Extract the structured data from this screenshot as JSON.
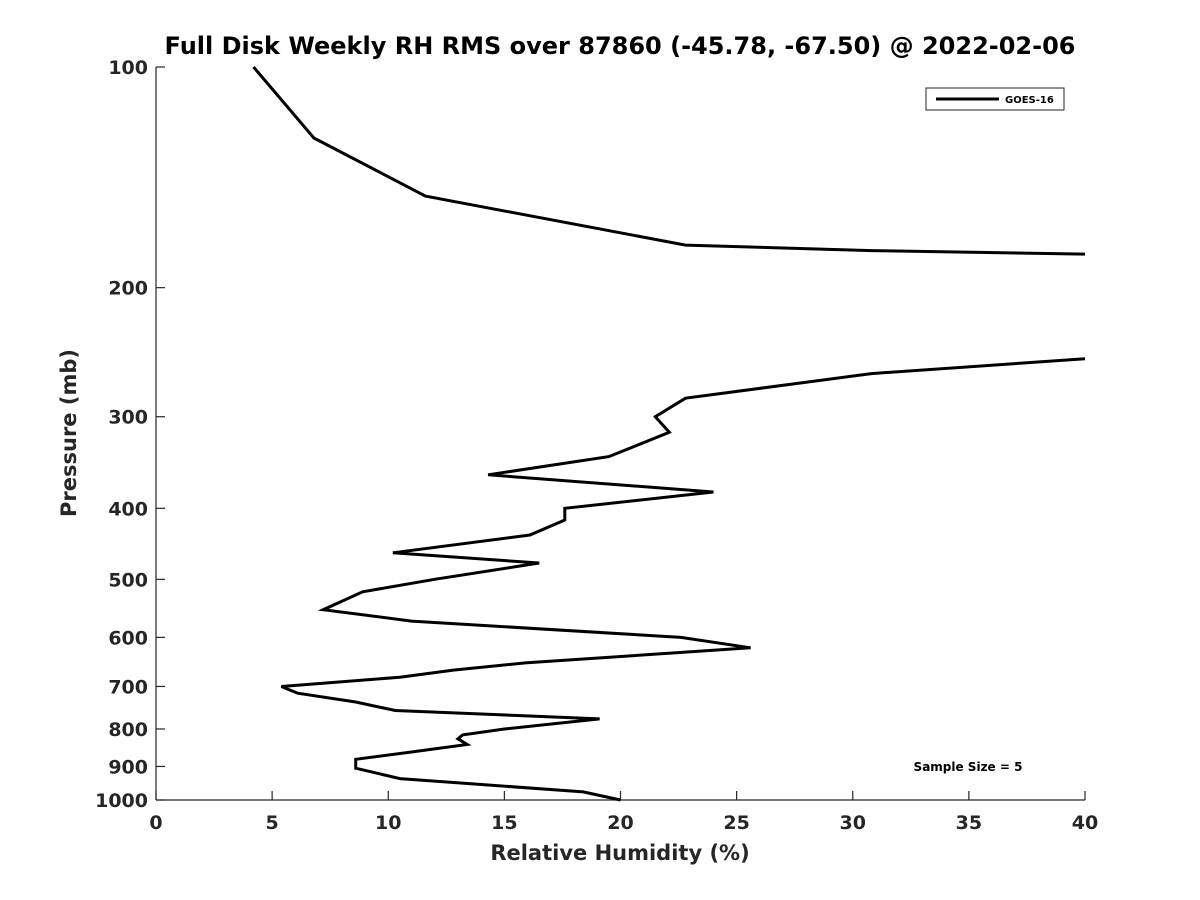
{
  "chart_data": {
    "type": "line",
    "title": "Full Disk Weekly RH RMS over 87860 (-45.78, -67.50) @ 2022-02-06",
    "xlabel": "Relative Humidity (%)",
    "ylabel": "Pressure (mb)",
    "xlim": [
      0,
      40
    ],
    "ylim": [
      100,
      1000
    ],
    "y_scale": "log",
    "y_reversed": true,
    "x_ticks": [
      0,
      5,
      10,
      15,
      20,
      25,
      30,
      35,
      40
    ],
    "y_ticks": [
      100,
      200,
      300,
      400,
      500,
      600,
      700,
      800,
      900,
      1000
    ],
    "grid": false,
    "legend": {
      "placement": "top-right",
      "entries": [
        "GOES-16"
      ]
    },
    "annotation": "Sample Size = 5",
    "series": [
      {
        "name": "GOES-16",
        "color": "#000000",
        "segments": [
          {
            "x": [
              4.2,
              6.8,
              11.6,
              22.8,
              30.8,
              40.0
            ],
            "y": [
              100,
              125,
              150,
              175,
              178,
              180
            ]
          },
          {
            "x": [
              40.0,
              30.8,
              22.8,
              21.5,
              22.1,
              19.5,
              14.3,
              24.0,
              17.6,
              17.6,
              16.1,
              10.2,
              16.5,
              12.0,
              8.9,
              7.2,
              11.0,
              22.6,
              25.6,
              15.9,
              12.8,
              10.5,
              5.4,
              6.1,
              8.6,
              10.3,
              19.1,
              15.0,
              13.2,
              13.0,
              13.4,
              11.0,
              8.6,
              8.6,
              10.5,
              18.4,
              20.0
            ],
            "y": [
              250,
              262,
              283,
              300,
              315,
              340,
              360,
              380,
              400,
              415,
              435,
              460,
              475,
              500,
              520,
              550,
              570,
              600,
              620,
              650,
              665,
              680,
              700,
              715,
              735,
              755,
              775,
              800,
              815,
              825,
              840,
              860,
              880,
              905,
              935,
              975,
              1000
            ]
          }
        ]
      }
    ]
  }
}
